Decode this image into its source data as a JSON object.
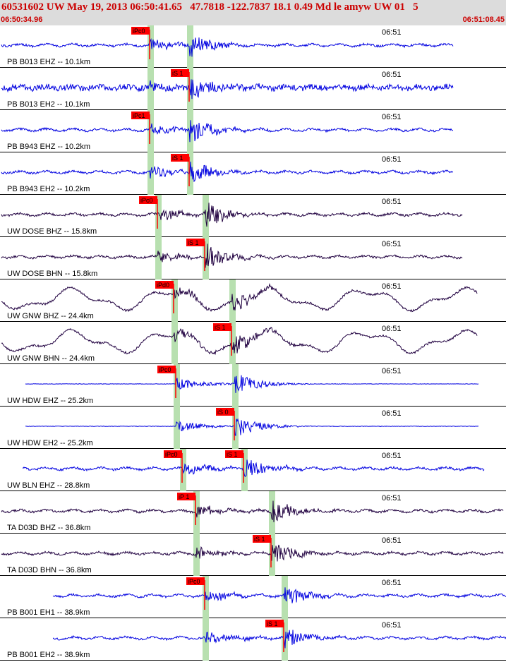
{
  "header": {
    "title": "60531602 UW May 19, 2013 06:50:41.65   47.7818 -122.7837 18.1 0.49 Md le amyw UW 01   5",
    "start_time": "06:50:34.96",
    "end_time": "06:51:08.45"
  },
  "time_mark": "06:51",
  "colors": {
    "blue_trace": "#0000e0",
    "dark_trace": "#200040",
    "pick": "#ff0000",
    "pick_window": "#b8e0b0"
  },
  "traces": [
    {
      "label": "PB B013 EHZ -- 10.1km",
      "pick": "iPc0",
      "color": "blue"
    },
    {
      "label": "PB B013 EH2 -- 10.1km",
      "pick": "iS 1",
      "color": "blue"
    },
    {
      "label": "PB B943 EHZ -- 10.2km",
      "pick": "iPc1",
      "color": "blue"
    },
    {
      "label": "PB B943 EH2 -- 10.2km",
      "pick": "iS 1",
      "color": "blue"
    },
    {
      "label": "UW DOSE BHZ -- 15.8km",
      "pick": "iPc0",
      "color": "dark"
    },
    {
      "label": "UW DOSE BHN -- 15.8km",
      "pick": "iS 1",
      "color": "dark"
    },
    {
      "label": "UW GNW BHZ -- 24.4km",
      "pick": "iPd0",
      "color": "dark"
    },
    {
      "label": "UW GNW BHN -- 24.4km",
      "pick": "iS 1",
      "color": "dark"
    },
    {
      "label": "UW HDW EHZ -- 25.2km",
      "pick": "iPc0",
      "color": "blue"
    },
    {
      "label": "UW HDW EH2 -- 25.2km",
      "pick": "iS 0",
      "color": "blue"
    },
    {
      "label": "UW BLN EHZ -- 28.8km",
      "pick": "iPc0",
      "pick2": "iS 1",
      "color": "blue"
    },
    {
      "label": "TA D03D BHZ -- 36.8km",
      "pick": "iP 1",
      "color": "dark"
    },
    {
      "label": "TA D03D BHN -- 36.8km",
      "pick": "iS 1",
      "color": "dark"
    },
    {
      "label": "PB B001 EH1 -- 38.9km",
      "pick": "iPc0",
      "color": "blue"
    },
    {
      "label": "PB B001 EH2 -- 38.9km",
      "pick": "iS 1",
      "color": "blue"
    }
  ]
}
